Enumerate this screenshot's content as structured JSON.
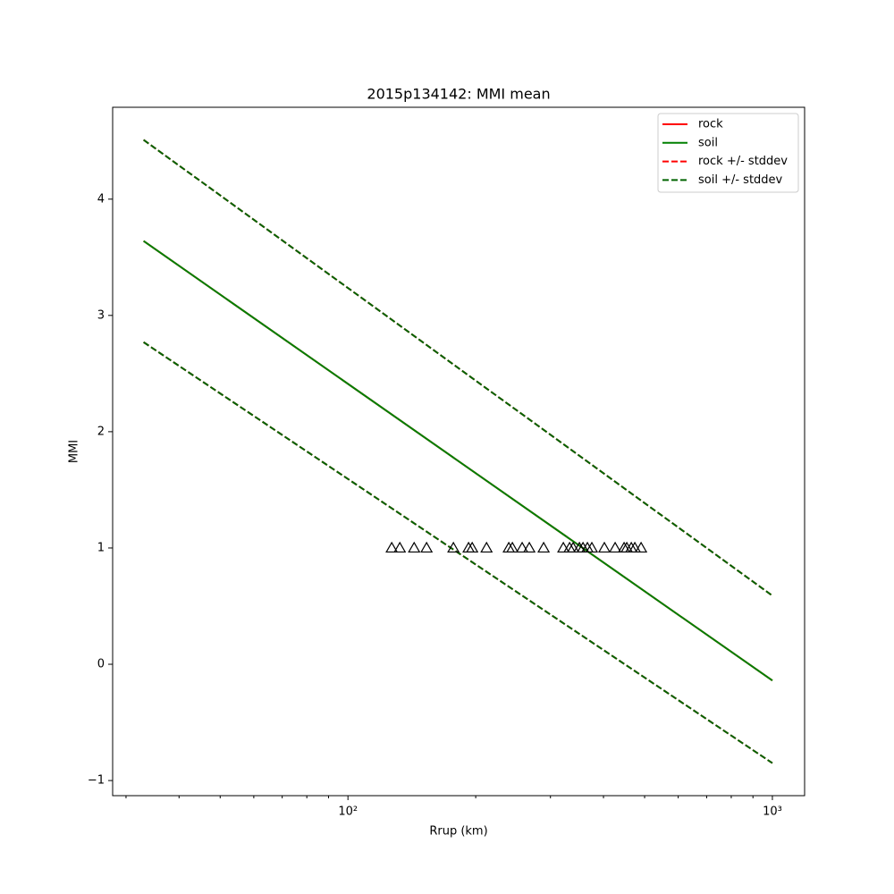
{
  "chart_data": {
    "type": "line",
    "title": "2015p134142: MMI mean",
    "xlabel": "Rrup (km)",
    "ylabel": "MMI",
    "xscale": "log",
    "xlim": [
      27.9,
      1191
    ],
    "ylim": [
      -1.13,
      4.79
    ],
    "xticks": [
      {
        "value": 100,
        "label": "10²"
      },
      {
        "value": 1000,
        "label": "10³"
      }
    ],
    "xminorticks": [
      30,
      40,
      50,
      60,
      70,
      80,
      90,
      200,
      300,
      400,
      500,
      600,
      700,
      800,
      900
    ],
    "yticks": [
      {
        "value": -1,
        "label": "−1"
      },
      0,
      1,
      2,
      3,
      4
    ],
    "grid": false,
    "legend": "upper right",
    "series": [
      {
        "name": "rock",
        "color": "#ff0000",
        "dashed": false,
        "x": [
          33,
          1000
        ],
        "values": [
          3.64,
          -0.14
        ]
      },
      {
        "name": "soil",
        "color": "#008000",
        "dashed": false,
        "x": [
          33,
          1000
        ],
        "values": [
          3.64,
          -0.14
        ]
      },
      {
        "name": "rock +/- stddev",
        "color": "#ff0000",
        "dashed": true,
        "x": [
          33,
          1000
        ],
        "upper": [
          4.51,
          0.59
        ],
        "lower": [
          2.77,
          -0.85
        ]
      },
      {
        "name": "soil +/- stddev",
        "color": "#006400",
        "dashed": true,
        "x": [
          33,
          1000
        ],
        "upper": [
          4.51,
          0.59
        ],
        "lower": [
          2.77,
          -0.85
        ]
      }
    ],
    "points": {
      "color": "#000000",
      "marker": "triangle-open",
      "x": [
        126.8,
        132.5,
        143.2,
        153.2,
        177.2,
        192.4,
        196.2,
        212.1,
        239.3,
        244.0,
        257.3,
        267.5,
        289.1,
        321.7,
        332.8,
        339.3,
        351.0,
        357.9,
        366.6,
        375.5,
        401.9,
        426.1,
        447.3,
        453.9,
        465.1,
        474.1,
        490.5
      ],
      "values": [
        1,
        1,
        1,
        1,
        1,
        1,
        1,
        1,
        1,
        1,
        1,
        1,
        1,
        1,
        1,
        1,
        1,
        1,
        1,
        1,
        1,
        1,
        1,
        1,
        1,
        1,
        1
      ]
    }
  }
}
